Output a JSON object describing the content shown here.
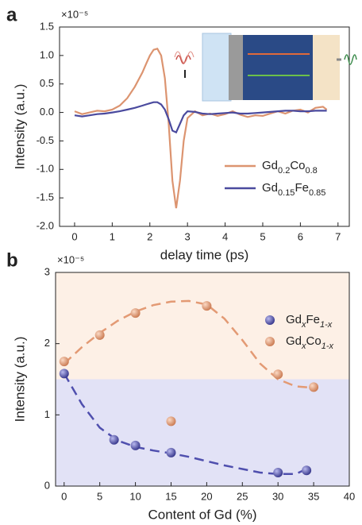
{
  "chart_data": [
    {
      "type": "line",
      "panel_label": "a",
      "multiplier": "×10⁻⁵",
      "xlabel": "delay time (ps)",
      "ylabel": "Intensity (a.u.)",
      "xlim": [
        -0.4,
        7.3
      ],
      "ylim": [
        -2.0,
        1.5
      ],
      "xticks": [
        0,
        1,
        2,
        3,
        4,
        5,
        6,
        7
      ],
      "yticks": [
        {
          "value": -2,
          "label": "-2.0"
        },
        -1.5,
        {
          "value": -1,
          "label": "-1.0"
        },
        -0.5,
        {
          "value": 0,
          "label": "0.0"
        },
        0.5,
        {
          "value": 1,
          "label": "1.0"
        },
        1.5
      ],
      "legend": "lower right",
      "x": [
        0,
        0.2,
        0.4,
        0.6,
        0.8,
        1.0,
        1.2,
        1.4,
        1.6,
        1.8,
        1.9,
        2.0,
        2.1,
        2.2,
        2.3,
        2.4,
        2.5,
        2.6,
        2.7,
        2.8,
        2.9,
        3.0,
        3.2,
        3.4,
        3.6,
        3.8,
        4.0,
        4.2,
        4.4,
        4.6,
        4.8,
        5.0,
        5.2,
        5.4,
        5.6,
        5.8,
        6.0,
        6.2,
        6.4,
        6.6,
        6.7
      ],
      "series": [
        {
          "name": "Gd0.2Co0.8",
          "color": "#dc9470",
          "values": [
            0.02,
            -0.03,
            0.0,
            0.03,
            0.02,
            0.05,
            0.12,
            0.25,
            0.45,
            0.7,
            0.85,
            1.0,
            1.1,
            1.12,
            1.0,
            0.6,
            -0.2,
            -1.2,
            -1.68,
            -1.2,
            -0.5,
            -0.1,
            0.02,
            -0.05,
            -0.02,
            -0.06,
            -0.03,
            0.02,
            -0.04,
            -0.08,
            -0.05,
            -0.06,
            -0.02,
            0.02,
            -0.02,
            0.03,
            0.05,
            0.0,
            0.08,
            0.1,
            0.05
          ]
        },
        {
          "name": "Gd0.15Fe0.85",
          "color": "#4a4a9e",
          "values": [
            -0.05,
            -0.07,
            -0.05,
            -0.03,
            -0.02,
            0.0,
            0.02,
            0.05,
            0.08,
            0.12,
            0.14,
            0.16,
            0.18,
            0.18,
            0.14,
            0.05,
            -0.12,
            -0.32,
            -0.35,
            -0.2,
            -0.05,
            0.02,
            0.01,
            -0.02,
            -0.03,
            -0.02,
            -0.01,
            0.0,
            -0.02,
            -0.02,
            -0.01,
            0.0,
            0.01,
            0.02,
            0.03,
            0.03,
            0.02,
            0.02,
            0.03,
            0.03,
            0.03
          ]
        }
      ]
    },
    {
      "type": "scatter",
      "panel_label": "b",
      "multiplier": "×10⁻⁵",
      "xlabel": "Content of Gd (%)",
      "ylabel": "Intensity (a.u.)",
      "xlim": [
        -1.2,
        40
      ],
      "ylim": [
        0,
        3
      ],
      "xticks": [
        0,
        5,
        10,
        15,
        20,
        25,
        30,
        35,
        40
      ],
      "yticks": [
        0,
        1,
        2,
        3
      ],
      "legend": "upper right",
      "regions": [
        {
          "ymin": 1.5,
          "ymax": 3,
          "color": "#fdf0e6"
        },
        {
          "ymin": 0,
          "ymax": 1.5,
          "color": "#e2e2f6"
        }
      ],
      "series": [
        {
          "name": "GdxFe1-x",
          "color": "#4f4fae",
          "x": [
            0,
            7,
            10,
            15,
            30,
            34
          ],
          "values": [
            1.58,
            0.65,
            0.57,
            0.47,
            0.19,
            0.22
          ]
        },
        {
          "name": "GdxCo1-x",
          "color": "#e39a74",
          "x": [
            0,
            5,
            10,
            15,
            20,
            30,
            35
          ],
          "values": [
            1.75,
            2.12,
            2.43,
            0.91,
            2.53,
            1.57,
            1.39
          ]
        }
      ],
      "fits": [
        {
          "color": "#4f4fae",
          "x": [
            0,
            2.5,
            5,
            7.5,
            10,
            12.5,
            15,
            17.5,
            20,
            22.5,
            25,
            27.5,
            30,
            32.5,
            34
          ],
          "values": [
            1.58,
            1.15,
            0.82,
            0.64,
            0.55,
            0.5,
            0.46,
            0.41,
            0.35,
            0.29,
            0.24,
            0.19,
            0.17,
            0.17,
            0.24
          ]
        },
        {
          "color": "#e39a74",
          "x": [
            0,
            2.5,
            5,
            7.5,
            10,
            12.5,
            15,
            17.5,
            20,
            22.5,
            25,
            27.5,
            30,
            32.5,
            35
          ],
          "values": [
            1.72,
            1.95,
            2.15,
            2.32,
            2.45,
            2.54,
            2.59,
            2.6,
            2.55,
            2.35,
            2.05,
            1.72,
            1.5,
            1.4,
            1.38
          ]
        }
      ]
    }
  ]
}
